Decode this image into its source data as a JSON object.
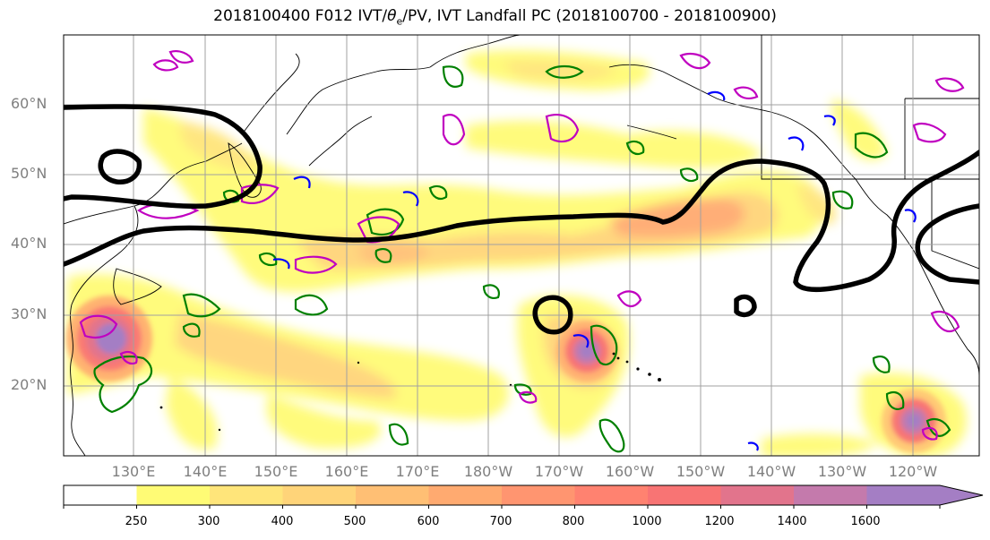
{
  "title_prefix": "2018100400 F012 IVT/",
  "title_theta": "θ",
  "title_theta_sub": "e",
  "title_suffix": "/PV, IVT Landfall PC (2018100700 - 2018100900)",
  "lat_labels": [
    "60°N",
    "50°N",
    "40°N",
    "30°N",
    "20°N"
  ],
  "lon_labels": [
    "130°E",
    "140°E",
    "150°E",
    "160°E",
    "170°E",
    "180°W",
    "170°W",
    "160°W",
    "150°W",
    "140°W",
    "130°W",
    "120°W"
  ],
  "colorbar": {
    "levels": [
      "250",
      "300",
      "400",
      "500",
      "600",
      "700",
      "800",
      "1000",
      "1200",
      "1400",
      "1600"
    ],
    "colors": [
      "#ffffff",
      "#fffb75",
      "#ffe57a",
      "#ffd479",
      "#ffbf74",
      "#ffaa70",
      "#ff9570",
      "#ff8270",
      "#f87474",
      "#e2748c",
      "#c47aac",
      "#a47ec4"
    ],
    "extend": "max"
  }
}
